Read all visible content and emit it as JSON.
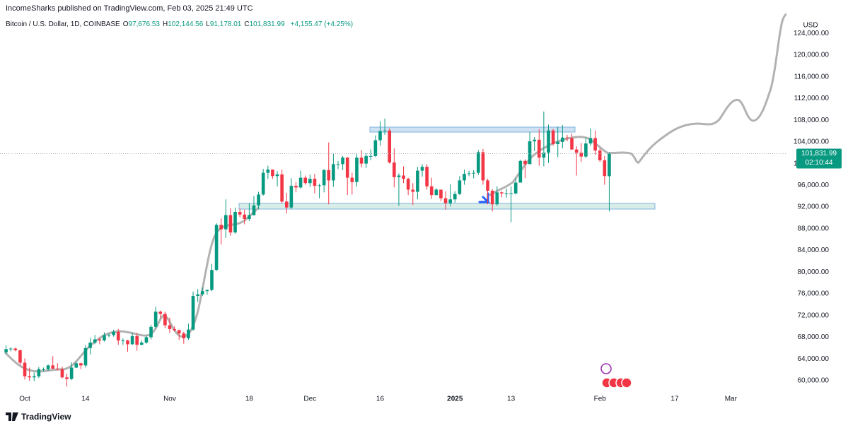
{
  "header": {
    "published": "IncomeSharks published on TradingView.com, Feb 03, 2025 21:49 UTC",
    "symbol": "Bitcoin / U.S. Dollar, 1D, COINBASE",
    "ohlc": [
      {
        "key": "O",
        "value": "97,676.53"
      },
      {
        "key": "H",
        "value": "102,144.56"
      },
      {
        "key": "L",
        "value": "91,178.01"
      },
      {
        "key": "C",
        "value": "101,831.99"
      }
    ],
    "change": "+4,155.47 (+4.25%)"
  },
  "footer": {
    "brand": "TradingView"
  },
  "chart_data": {
    "type": "candlestick",
    "currency": "USD",
    "up_color": "#089981",
    "down_color": "#f23645",
    "last_price_label": "101,831.99",
    "countdown": "02:10:44",
    "xlim": [
      -1.3,
      166.9
    ],
    "xticks": [
      {
        "value": 4,
        "label": "Oct"
      },
      {
        "value": 17,
        "label": "14"
      },
      {
        "value": 35,
        "label": "Nov"
      },
      {
        "value": 52,
        "label": "18"
      },
      {
        "value": 65,
        "label": "Dec"
      },
      {
        "value": 80,
        "label": "16"
      },
      {
        "value": 96,
        "label": "2025"
      },
      {
        "value": 108,
        "label": "13"
      },
      {
        "value": 127,
        "label": "Feb"
      },
      {
        "value": 143,
        "label": "17"
      },
      {
        "value": 155,
        "label": "Mar"
      }
    ],
    "ylim": [
      55300,
      130150
    ],
    "yticks": [
      {
        "value": 60000,
        "label": "60,000.00"
      },
      {
        "value": 64000,
        "label": "64,000.00"
      },
      {
        "value": 68000,
        "label": "68,000.00"
      },
      {
        "value": 72000,
        "label": "72,000.00"
      },
      {
        "value": 76000,
        "label": "76,000.00"
      },
      {
        "value": 80000,
        "label": "80,000.00"
      },
      {
        "value": 84000,
        "label": "84,000.00"
      },
      {
        "value": 88000,
        "label": "88,000.00"
      },
      {
        "value": 92000,
        "label": "92,000.00"
      },
      {
        "value": 96000,
        "label": "96,000.00"
      },
      {
        "value": 100000,
        "label": "100,000.00"
      },
      {
        "value": 104000,
        "label": "104,000.00"
      },
      {
        "value": 108000,
        "label": "108,000.00"
      },
      {
        "value": 112000,
        "label": "112,000.00"
      },
      {
        "value": 116000,
        "label": "116,000.00"
      },
      {
        "value": 120000,
        "label": "120,000.00"
      },
      {
        "value": 124000,
        "label": "124,000.00"
      }
    ],
    "x": [
      0,
      1,
      2,
      3,
      4,
      5,
      6,
      7,
      8,
      9,
      10,
      11,
      12,
      13,
      14,
      15,
      16,
      17,
      18,
      19,
      20,
      21,
      22,
      23,
      24,
      25,
      26,
      27,
      28,
      29,
      30,
      31,
      32,
      33,
      34,
      35,
      36,
      37,
      38,
      39,
      40,
      41,
      42,
      43,
      44,
      45,
      46,
      47,
      48,
      49,
      50,
      51,
      52,
      53,
      54,
      55,
      56,
      57,
      58,
      59,
      60,
      61,
      62,
      63,
      64,
      65,
      66,
      67,
      68,
      69,
      70,
      71,
      72,
      73,
      74,
      75,
      76,
      77,
      78,
      79,
      80,
      81,
      82,
      83,
      84,
      85,
      86,
      87,
      88,
      89,
      90,
      91,
      92,
      93,
      94,
      95,
      96,
      97,
      98,
      99,
      100,
      101,
      102,
      103,
      104,
      105,
      106,
      107,
      108,
      109,
      110,
      111,
      112,
      113,
      114,
      115,
      116,
      117,
      118,
      119,
      120,
      121,
      122,
      123,
      124,
      125,
      126,
      127,
      128,
      129
    ],
    "candles": [
      [
        65200,
        66500,
        64900,
        65800
      ],
      [
        65800,
        66100,
        65400,
        65900
      ],
      [
        65900,
        66100,
        65400,
        65600
      ],
      [
        65600,
        65700,
        62900,
        63300
      ],
      [
        63300,
        64100,
        60200,
        60800
      ],
      [
        60800,
        62400,
        60000,
        60600
      ],
      [
        60600,
        61500,
        59900,
        60800
      ],
      [
        60800,
        62500,
        60500,
        62100
      ],
      [
        62100,
        62400,
        61700,
        62100
      ],
      [
        62100,
        63000,
        61800,
        62800
      ],
      [
        62800,
        64500,
        62100,
        62200
      ],
      [
        62200,
        63200,
        61900,
        62100
      ],
      [
        62100,
        62600,
        60400,
        60600
      ],
      [
        60600,
        61300,
        58900,
        60300
      ],
      [
        60300,
        63400,
        60100,
        62400
      ],
      [
        62400,
        63500,
        62300,
        63200
      ],
      [
        63200,
        63300,
        62100,
        62800
      ],
      [
        62800,
        66500,
        62400,
        66000
      ],
      [
        66000,
        67900,
        64800,
        67000
      ],
      [
        67000,
        68400,
        66700,
        67600
      ],
      [
        67600,
        67900,
        66700,
        67400
      ],
      [
        67400,
        68900,
        67200,
        68400
      ],
      [
        68400,
        68700,
        68000,
        68400
      ],
      [
        68400,
        69400,
        68100,
        69000
      ],
      [
        69000,
        69500,
        66600,
        67400
      ],
      [
        67400,
        67800,
        66600,
        67400
      ],
      [
        67400,
        67500,
        65300,
        66700
      ],
      [
        66700,
        68800,
        66600,
        68200
      ],
      [
        68200,
        68800,
        65500,
        66600
      ],
      [
        66600,
        67400,
        66500,
        67000
      ],
      [
        67000,
        68300,
        66800,
        68000
      ],
      [
        68000,
        70300,
        67600,
        69900
      ],
      [
        69900,
        73600,
        69700,
        72700
      ],
      [
        72700,
        72900,
        71500,
        72300
      ],
      [
        72300,
        72700,
        69700,
        70200
      ],
      [
        70200,
        71600,
        68800,
        69500
      ],
      [
        69500,
        70000,
        69100,
        69300
      ],
      [
        69300,
        69400,
        67500,
        68700
      ],
      [
        68700,
        69000,
        66800,
        67800
      ],
      [
        67800,
        70500,
        67500,
        69400
      ],
      [
        69400,
        76400,
        69200,
        75600
      ],
      [
        75600,
        76900,
        74500,
        75900
      ],
      [
        75900,
        77200,
        75600,
        76500
      ],
      [
        76500,
        76800,
        75800,
        76700
      ],
      [
        76700,
        81500,
        76500,
        80400
      ],
      [
        80400,
        89000,
        80200,
        88700
      ],
      [
        88700,
        89900,
        85100,
        87900
      ],
      [
        87900,
        93400,
        86300,
        90500
      ],
      [
        90500,
        91800,
        86700,
        87300
      ],
      [
        87300,
        91900,
        87100,
        91100
      ],
      [
        91100,
        91700,
        90100,
        90600
      ],
      [
        90600,
        91500,
        88800,
        89800
      ],
      [
        89800,
        92700,
        89400,
        90500
      ],
      [
        90500,
        94000,
        90400,
        92300
      ],
      [
        92300,
        94800,
        91600,
        94300
      ],
      [
        94300,
        99000,
        94100,
        98300
      ],
      [
        98300,
        99600,
        97200,
        98900
      ],
      [
        98900,
        98900,
        97200,
        97700
      ],
      [
        97700,
        98600,
        95800,
        98000
      ],
      [
        98000,
        98900,
        92700,
        93000
      ],
      [
        93000,
        94600,
        90800,
        91900
      ],
      [
        91900,
        97300,
        91600,
        95900
      ],
      [
        95900,
        96600,
        94700,
        95600
      ],
      [
        95600,
        98700,
        95400,
        97400
      ],
      [
        97400,
        97800,
        96100,
        96400
      ],
      [
        96400,
        98000,
        95700,
        97200
      ],
      [
        97200,
        98100,
        94500,
        95900
      ],
      [
        95900,
        96300,
        93600,
        96000
      ],
      [
        96000,
        99000,
        94700,
        98800
      ],
      [
        98800,
        103900,
        92500,
        96900
      ],
      [
        96900,
        101900,
        95700,
        99900
      ],
      [
        99900,
        100500,
        99000,
        99900
      ],
      [
        99900,
        101400,
        98800,
        101100
      ],
      [
        101100,
        101200,
        94200,
        97400
      ],
      [
        97400,
        98300,
        94300,
        96600
      ],
      [
        96600,
        101900,
        95700,
        101100
      ],
      [
        101100,
        102500,
        99300,
        100000
      ],
      [
        100000,
        101900,
        99200,
        101400
      ],
      [
        101400,
        102600,
        100600,
        101400
      ],
      [
        101400,
        105200,
        101200,
        104300
      ],
      [
        104300,
        107800,
        103300,
        106000
      ],
      [
        106000,
        108300,
        105300,
        106100
      ],
      [
        106100,
        106500,
        100000,
        100200
      ],
      [
        100200,
        102800,
        95600,
        97500
      ],
      [
        97500,
        98200,
        92200,
        97800
      ],
      [
        97800,
        99500,
        96400,
        97200
      ],
      [
        97200,
        97400,
        94200,
        95200
      ],
      [
        95200,
        96400,
        92400,
        94800
      ],
      [
        94800,
        99400,
        93400,
        98700
      ],
      [
        98700,
        99900,
        97600,
        99400
      ],
      [
        99400,
        99900,
        95200,
        95800
      ],
      [
        95800,
        97400,
        93500,
        94200
      ],
      [
        94200,
        95500,
        94100,
        95200
      ],
      [
        95200,
        95200,
        93100,
        93600
      ],
      [
        93600,
        94900,
        91500,
        92700
      ],
      [
        92700,
        96200,
        92100,
        93400
      ],
      [
        93400,
        94900,
        92800,
        94400
      ],
      [
        94400,
        97700,
        94200,
        96900
      ],
      [
        96900,
        98900,
        96100,
        98100
      ],
      [
        98100,
        98700,
        97700,
        98200
      ],
      [
        98200,
        98800,
        97300,
        98300
      ],
      [
        98300,
        102500,
        97900,
        102100
      ],
      [
        102100,
        102700,
        96100,
        96900
      ],
      [
        96900,
        97200,
        92500,
        95000
      ],
      [
        95000,
        95300,
        91200,
        92500
      ],
      [
        92500,
        95800,
        92200,
        94700
      ],
      [
        94700,
        94900,
        93800,
        94500
      ],
      [
        94500,
        95400,
        93700,
        94500
      ],
      [
        94500,
        95800,
        89200,
        94500
      ],
      [
        94500,
        97300,
        94300,
        96500
      ],
      [
        96500,
        100700,
        96500,
        100500
      ],
      [
        100500,
        100800,
        97300,
        99900
      ],
      [
        99900,
        105800,
        99900,
        104100
      ],
      [
        104100,
        104900,
        102300,
        104400
      ],
      [
        104400,
        106300,
        99600,
        101100
      ],
      [
        101100,
        109600,
        99500,
        102000
      ],
      [
        102000,
        107200,
        100100,
        106100
      ],
      [
        106100,
        106400,
        103300,
        103600
      ],
      [
        103600,
        106800,
        101200,
        104000
      ],
      [
        104000,
        107100,
        102800,
        104800
      ],
      [
        104800,
        105300,
        104100,
        104700
      ],
      [
        104700,
        105500,
        102500,
        102600
      ],
      [
        102600,
        103200,
        97800,
        102000
      ],
      [
        102000,
        103800,
        100300,
        101300
      ],
      [
        101300,
        104800,
        101000,
        103700
      ],
      [
        103700,
        106500,
        103300,
        104700
      ],
      [
        104700,
        106100,
        101600,
        102400
      ],
      [
        102400,
        102800,
        100300,
        100600
      ],
      [
        100600,
        101400,
        96100,
        97700
      ],
      [
        97676.53,
        102144.56,
        91178.01,
        101831.99
      ]
    ]
  }
}
